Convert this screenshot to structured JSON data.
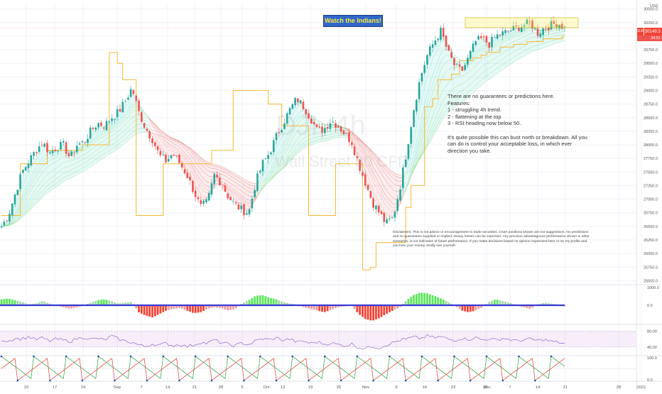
{
  "chart_data": {
    "type": "candlestick",
    "currency": "USD",
    "symbol_short": "DJI",
    "watermark_symbol": "DJI, 4h",
    "watermark_name": "Wall Street 30 CFD",
    "last_price": "30149.5",
    "countdown": "34:51",
    "banner": "Watch the Indians!",
    "note_lines": [
      "There are no guarantees or predictions here.",
      "Features:",
      "1 - struggling 4h trend.",
      "2 - flattening at the top",
      "3 - RSI heading now below 50.",
      "",
      "It's quite possible this can bust north or breakdown. All you",
      "can do is control your acceptable loss, in which ever",
      "direction you take."
    ],
    "disclaimer": "Disclaimers: This is not advice or encouragement to trade securities. Chart positions shown are not suggestions. No predictions and no guarantees supplied or implied. Heavy losses can be expected. Any previous advantageous performance shown in other scenarios, is not indicative of future performance.  If you make decisions based on opinion expressed here or on my profile and you lose your money, kindly sue yourself.",
    "price_axis": {
      "min": 25500,
      "max": 30500,
      "ticks": [
        "30500.0",
        "30250.0",
        "30000.0",
        "29750.0",
        "29500.0",
        "29250.0",
        "29000.0",
        "28750.0",
        "28500.0",
        "28250.0",
        "28000.0",
        "27750.0",
        "27500.0",
        "27250.0",
        "27000.0",
        "26750.0",
        "26500.0",
        "26250.0",
        "26000.0",
        "25750.0",
        "25500.0"
      ]
    },
    "x_ticks": [
      "10",
      "17",
      "24",
      "Sep",
      "7",
      "14",
      "21",
      "28",
      "5",
      "Oct",
      "12",
      "19",
      "26",
      "Nov",
      "9",
      "16",
      "23",
      "30",
      "Dec",
      "7",
      "14",
      "21",
      "28",
      "2021"
    ],
    "close_series": [
      26500,
      26700,
      27100,
      27500,
      27700,
      27900,
      28050,
      27850,
      27950,
      28000,
      27750,
      28000,
      28050,
      28250,
      28400,
      28350,
      28500,
      28600,
      28800,
      29050,
      28600,
      28300,
      28100,
      27800,
      27700,
      27850,
      27650,
      27450,
      27150,
      26850,
      26950,
      27450,
      27300,
      27050,
      26900,
      26800,
      26750,
      27300,
      27650,
      27850,
      28150,
      28400,
      28650,
      28850,
      28700,
      28500,
      28250,
      28300,
      28450,
      28350,
      28200,
      28050,
      27650,
      27300,
      26950,
      26750,
      26550,
      26650,
      27200,
      27900,
      28650,
      29250,
      29650,
      29900,
      30100,
      29700,
      29450,
      29350,
      29600,
      29900,
      29950,
      29850,
      30000,
      30050,
      30100,
      30150,
      30200,
      30250,
      30050,
      30150,
      30200,
      30250,
      30150
    ],
    "stop_series": [
      26700,
      26700,
      26700,
      27650,
      27650,
      27650,
      27650,
      27900,
      27900,
      27900,
      27900,
      27900,
      28000,
      28000,
      28000,
      28000,
      29700,
      29500,
      29200,
      29200,
      26700,
      26700,
      26700,
      26700,
      27650,
      27650,
      27650,
      27650,
      27650,
      27650,
      27650,
      27900,
      27900,
      27900,
      29000,
      29000,
      29000,
      29000,
      29000,
      28750,
      28750,
      28350,
      28350,
      28350,
      28350,
      26700,
      26700,
      26700,
      26700,
      27650,
      27650,
      27650,
      27650,
      25700,
      25750,
      26200,
      26200,
      26200,
      26200,
      26850,
      27250,
      27250,
      28700,
      28850,
      29200,
      29200,
      29300,
      29550,
      29550,
      29600,
      29650,
      29700,
      29700,
      29800,
      29800,
      29850,
      29850,
      29900,
      29900,
      29950,
      29950,
      29950,
      30000
    ],
    "oscillator": {
      "label": "1000.0",
      "zero_label": "0.0",
      "values": [
        0.35,
        0.4,
        0.3,
        0.2,
        0.05,
        0.1,
        0.25,
        0.1,
        0.0,
        -0.1,
        -0.2,
        -0.1,
        0.0,
        0.15,
        0.3,
        0.35,
        0.25,
        0.1,
        0.15,
        0.2,
        -0.4,
        -0.6,
        -0.7,
        -0.5,
        -0.3,
        -0.2,
        -0.15,
        -0.3,
        -0.45,
        -0.4,
        -0.2,
        -0.1,
        -0.15,
        -0.3,
        -0.2,
        0.1,
        0.3,
        0.55,
        0.6,
        0.45,
        0.35,
        0.2,
        0.1,
        0.05,
        -0.1,
        -0.2,
        -0.3,
        -0.4,
        -0.25,
        -0.1,
        -0.05,
        0.0,
        -0.5,
        -0.8,
        -0.9,
        -0.75,
        -0.5,
        -0.3,
        -0.1,
        0.3,
        0.6,
        0.75,
        0.7,
        0.55,
        0.4,
        0.2,
        0.0,
        -0.3,
        -0.4,
        -0.3,
        -0.1,
        0.2,
        0.35,
        0.25,
        0.15,
        0.0,
        -0.1,
        -0.2,
        0.05,
        0.15,
        0.1,
        0.05,
        -0.05
      ]
    },
    "rsi": {
      "upper": "80.00",
      "lower": "40.00",
      "values": [
        58,
        55,
        62,
        60,
        66,
        58,
        63,
        55,
        60,
        57,
        54,
        61,
        65,
        59,
        62,
        57,
        68,
        60,
        55,
        52,
        45,
        41,
        48,
        44,
        50,
        43,
        47,
        41,
        45,
        52,
        49,
        58,
        51,
        47,
        43,
        50,
        46,
        55,
        61,
        58,
        63,
        57,
        60,
        52,
        55,
        49,
        53,
        47,
        50,
        46,
        43,
        48,
        39,
        36,
        42,
        38,
        45,
        51,
        57,
        60,
        65,
        61,
        68,
        63,
        66,
        60,
        57,
        62,
        59,
        64,
        58,
        61,
        57,
        62,
        59,
        55,
        58,
        60,
        56,
        59,
        54,
        52,
        48
      ]
    },
    "stoch": {
      "upper": "100.0",
      "lower": "0.0"
    }
  }
}
